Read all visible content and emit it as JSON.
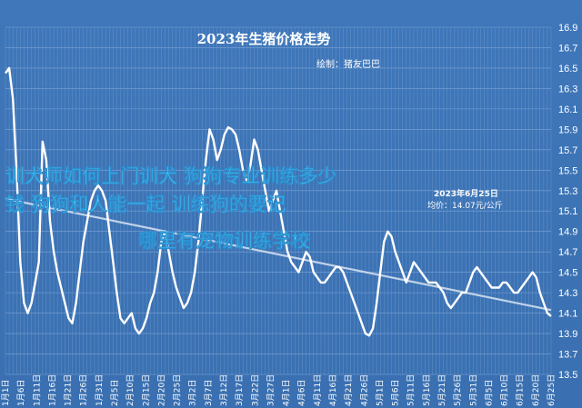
{
  "chart_data": {
    "type": "line",
    "title": "2023年生猪价格走势",
    "credit": "绘制：猪友巴巴",
    "annotation": {
      "line1": "2023年6月25日",
      "line2": "均价：14.07元/公斤"
    },
    "overlay_text": [
      "训犬师如何上门训犬 狗狗专业训练多少",
      "钱 狗狗和人能一起 训练狗的要记",
      "哪里有宠物训练学校"
    ],
    "ylim": [
      13.5,
      16.9
    ],
    "yticks": [
      "13.5",
      "13.7",
      "13.9",
      "14.1",
      "14.3",
      "14.5",
      "14.7",
      "14.9",
      "15.1",
      "15.3",
      "15.5",
      "15.7",
      "15.9",
      "16.1",
      "16.3",
      "16.5",
      "16.7",
      "16.9"
    ],
    "xticks": [
      "1月1日",
      "1月6日",
      "1月11日",
      "1月16日",
      "1月21日",
      "1月26日",
      "1月31日",
      "2月5日",
      "2月10日",
      "2月15日",
      "2月20日",
      "2月25日",
      "3月2日",
      "3月7日",
      "3月12日",
      "3月17日",
      "3月22日",
      "3月27日",
      "4月1日",
      "4月6日",
      "4月11日",
      "4月16日",
      "4月21日",
      "4月26日",
      "5月1日",
      "5月6日",
      "5月11日",
      "5月16日",
      "5月21日",
      "5月26日",
      "5月31日",
      "6月5日",
      "6月10日",
      "6月15日",
      "6月20日",
      "6月25日"
    ],
    "grid": true,
    "series": [
      {
        "values": [
          16.45,
          16.5,
          16.2,
          15.5,
          14.6,
          14.2,
          14.1,
          14.2,
          14.4,
          14.6,
          15.78,
          15.6,
          15.0,
          14.7,
          14.5,
          14.35,
          14.2,
          14.05,
          14.0,
          14.2,
          14.5,
          14.8,
          15.0,
          15.2,
          15.3,
          15.35,
          15.3,
          15.2,
          14.9,
          14.6,
          14.3,
          14.05,
          14.0,
          14.05,
          14.1,
          13.95,
          13.9,
          13.95,
          14.05,
          14.2,
          14.3,
          14.5,
          14.8,
          14.9,
          14.7,
          14.5,
          14.35,
          14.25,
          14.15,
          14.2,
          14.3,
          14.5,
          14.8,
          15.2,
          15.6,
          15.9,
          15.8,
          15.6,
          15.7,
          15.85,
          15.92,
          15.9,
          15.85,
          15.7,
          15.5,
          15.4,
          15.55,
          15.8,
          15.7,
          15.5,
          15.3,
          15.1,
          15.2,
          15.3,
          15.1,
          14.9,
          14.7,
          14.6,
          14.55,
          14.5,
          14.6,
          14.7,
          14.65,
          14.5,
          14.45,
          14.4,
          14.4,
          14.45,
          14.5,
          14.55,
          14.55,
          14.5,
          14.4,
          14.3,
          14.2,
          14.1,
          14.0,
          13.9,
          13.88,
          13.95,
          14.2,
          14.5,
          14.8,
          14.9,
          14.85,
          14.7,
          14.6,
          14.5,
          14.4,
          14.5,
          14.6,
          14.55,
          14.5,
          14.45,
          14.4,
          14.4,
          14.4,
          14.35,
          14.3,
          14.2,
          14.15,
          14.2,
          14.25,
          14.3,
          14.3,
          14.4,
          14.5,
          14.55,
          14.5,
          14.45,
          14.4,
          14.35,
          14.35,
          14.35,
          14.4,
          14.4,
          14.35,
          14.3,
          14.3,
          14.35,
          14.4,
          14.45,
          14.5,
          14.45,
          14.3,
          14.2,
          14.1,
          14.07
        ]
      }
    ],
    "trend": {
      "start": 15.22,
      "end": 14.13
    }
  }
}
